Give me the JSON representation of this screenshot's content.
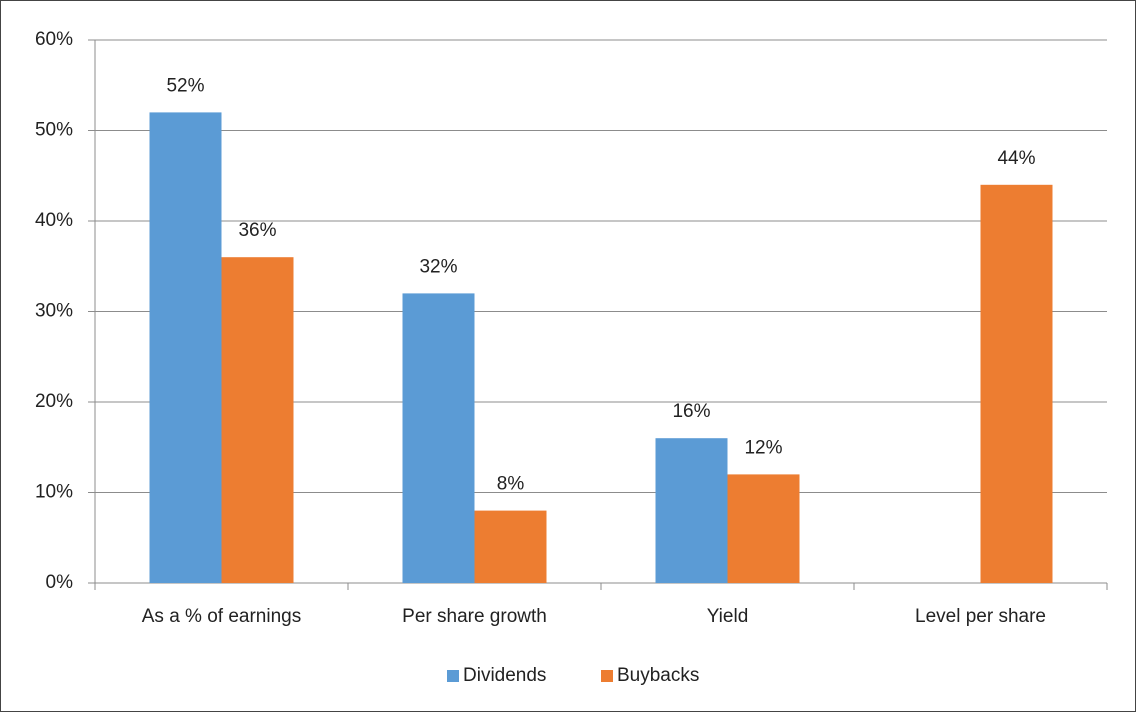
{
  "chart_data": {
    "type": "bar",
    "categories": [
      "As a % of earnings",
      "Per share growth",
      "Yield",
      "Level per share"
    ],
    "series": [
      {
        "name": "Dividends",
        "color": "#5b9bd5",
        "values": [
          52,
          32,
          16,
          null
        ],
        "value_labels": [
          "52%",
          "32%",
          "16%",
          null
        ]
      },
      {
        "name": "Buybacks",
        "color": "#ed7d31",
        "values": [
          36,
          8,
          12,
          44
        ],
        "value_labels": [
          "36%",
          "8%",
          "12%",
          "44%"
        ]
      }
    ],
    "ylim": [
      0,
      60
    ],
    "yticks": [
      {
        "value": 0,
        "label": "0%"
      },
      {
        "value": 10,
        "label": "10%"
      },
      {
        "value": 20,
        "label": "20%"
      },
      {
        "value": 30,
        "label": "30%"
      },
      {
        "value": 40,
        "label": "40%"
      },
      {
        "value": 50,
        "label": "50%"
      },
      {
        "value": 60,
        "label": "60%"
      }
    ],
    "grid": true,
    "legend": "bottom"
  }
}
